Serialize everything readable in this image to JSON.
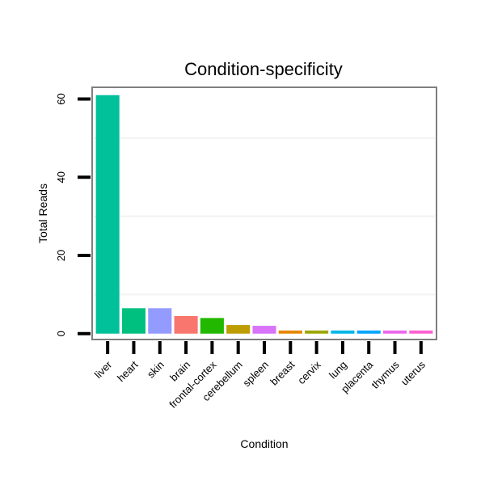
{
  "chart_data": {
    "type": "bar",
    "title": "Condition-specificity",
    "xlabel": "Condition",
    "ylabel": "Total Reads",
    "categories": [
      "liver",
      "heart",
      "skin",
      "brain",
      "frontal-cortex",
      "cerebellum",
      "spleen",
      "breast",
      "cervix",
      "lung",
      "placenta",
      "thymus",
      "uterus"
    ],
    "values": [
      61,
      6.5,
      6.5,
      4.5,
      4,
      2.2,
      2,
      0.8,
      0.8,
      0.8,
      0.8,
      0.8,
      0.8
    ],
    "colors": [
      "#00C19A",
      "#00C07F",
      "#949BFF",
      "#F8766D",
      "#22B800",
      "#BD9D00",
      "#D873FA",
      "#E58700",
      "#9CA700",
      "#00B6E8",
      "#00A6FF",
      "#ED68ED",
      "#FD61D1"
    ],
    "ylim": [
      -1.5,
      63
    ],
    "yticks": [
      0,
      20,
      40,
      60
    ],
    "grid": true,
    "legend": "none"
  }
}
